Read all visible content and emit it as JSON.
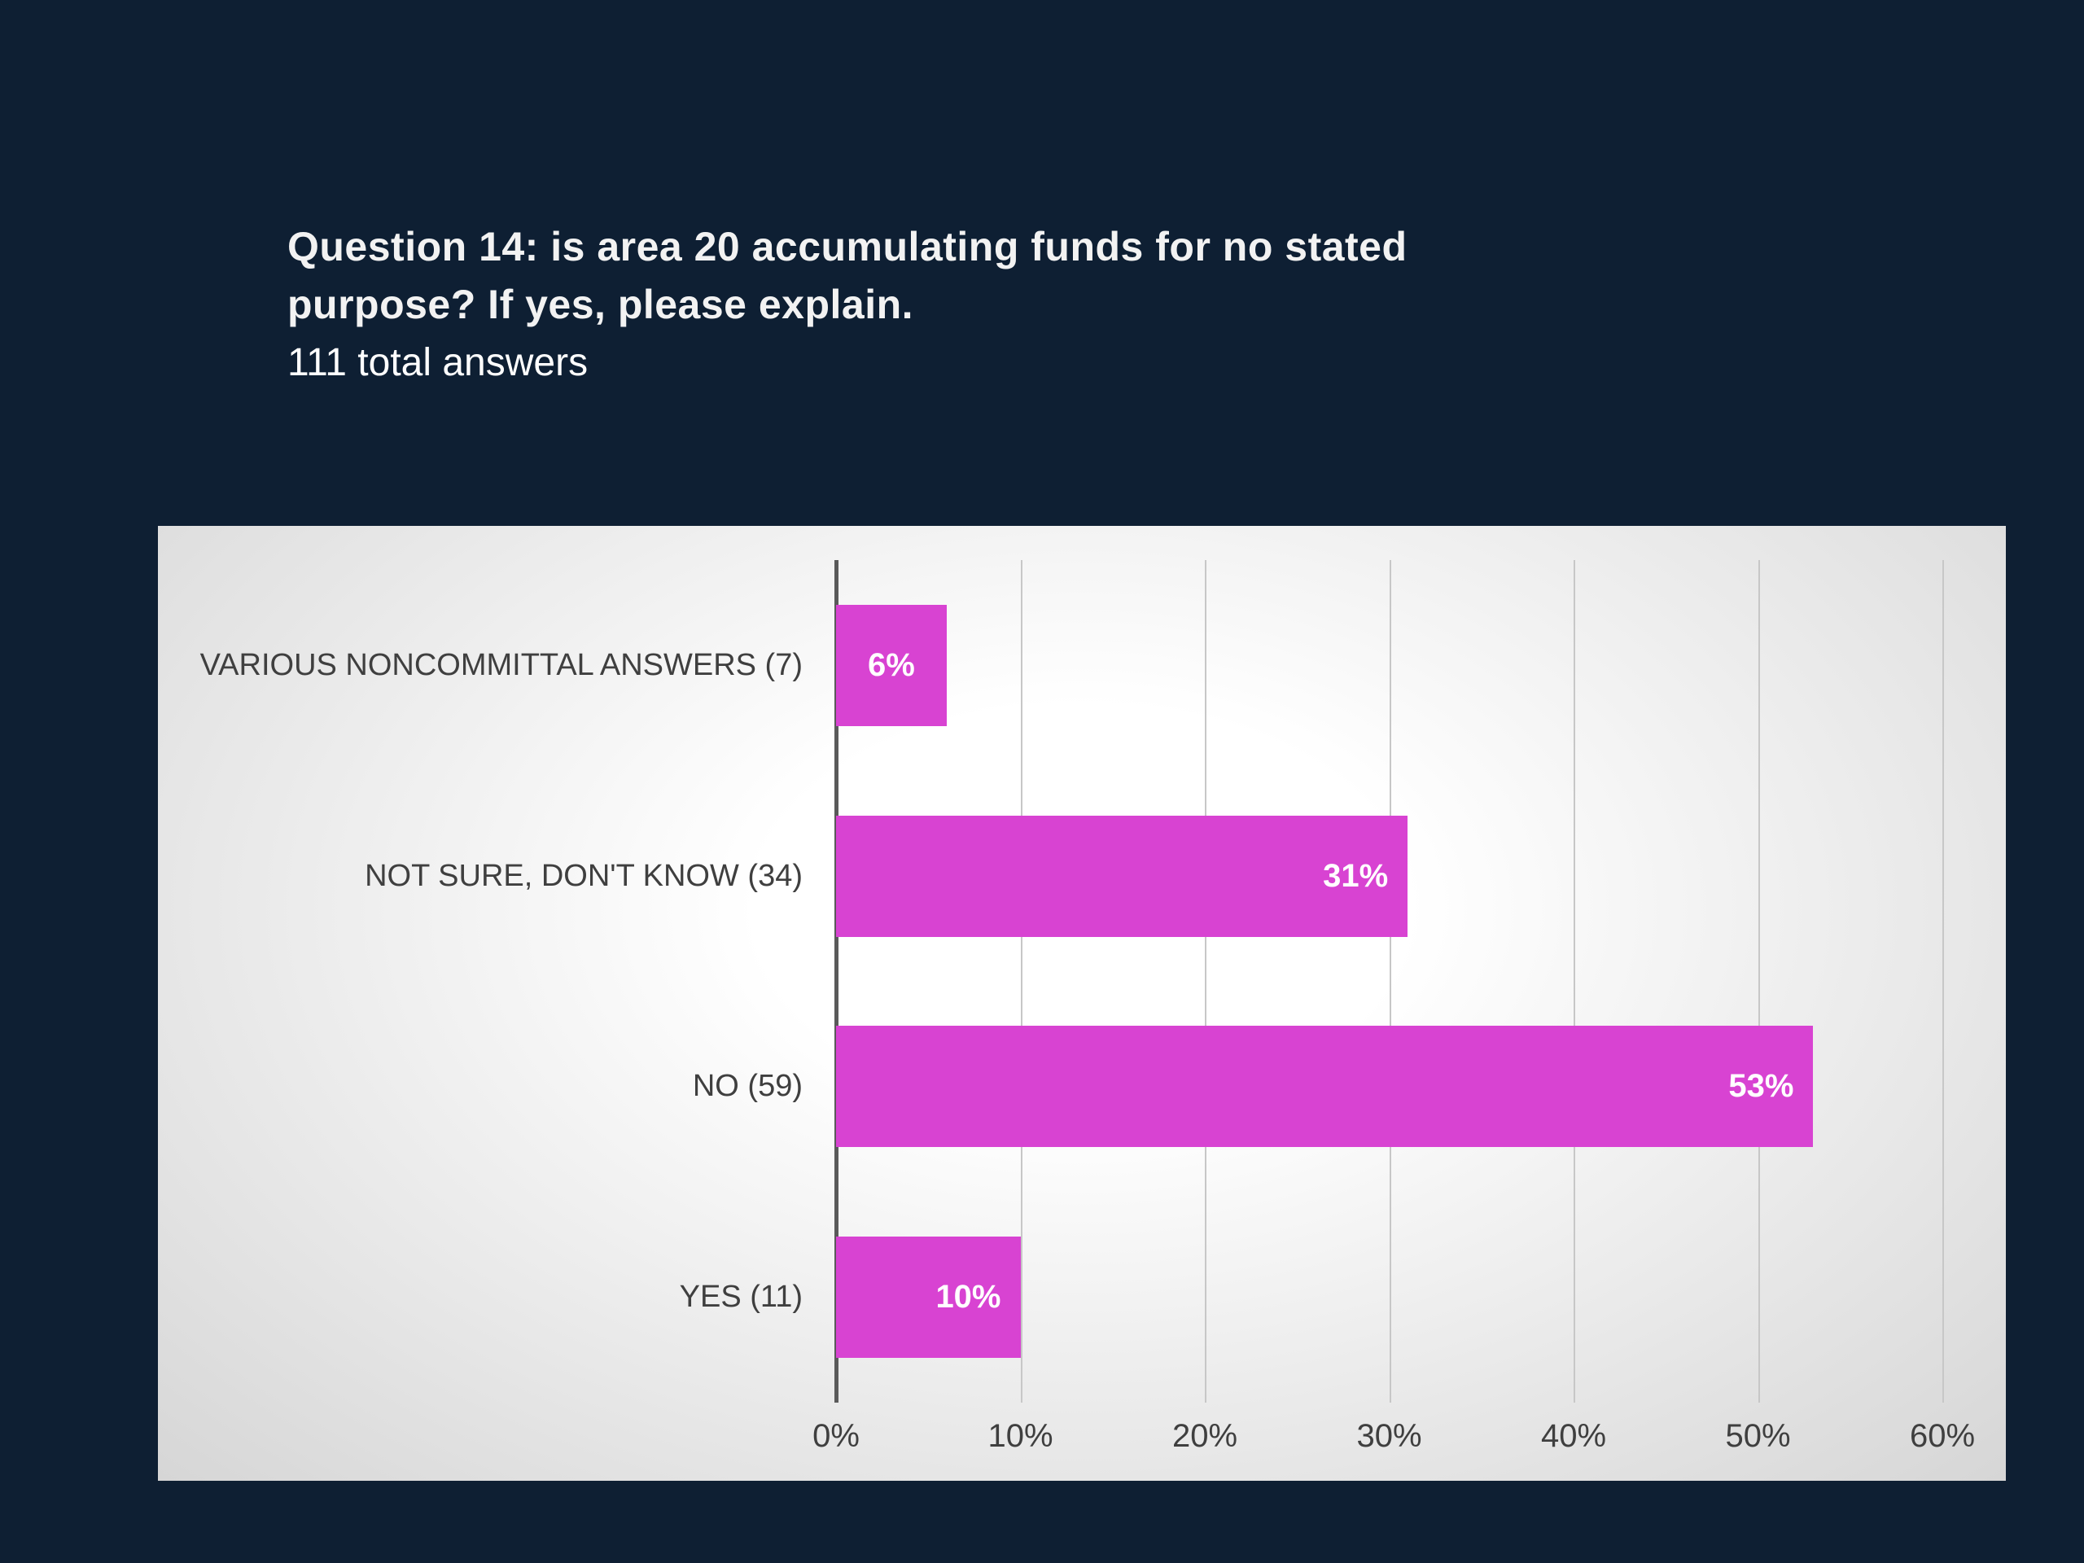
{
  "slide": {
    "title_lines": [
      "Question 14: is area 20 accumulating funds for no stated",
      "purpose? If yes, please explain."
    ],
    "title": "Question 14: is area 20 accumulating funds for no stated purpose? If yes, please explain.",
    "subtitle": "111 total answers"
  },
  "colors": {
    "background": "#0e1f33",
    "panel_center": "#ffffff",
    "panel_edge": "#d6d6d6",
    "bar": "#d843d2",
    "axis_line": "#5a5a5a",
    "gridline": "#c7c7c7",
    "category_text": "#3f3f3f",
    "tick_text": "#3f3f3f",
    "value_label_text": "#ffffff",
    "title_text": "#f2f2f2"
  },
  "chart_data": {
    "type": "bar",
    "orientation": "horizontal",
    "title": "Question 14: is area 20 accumulating funds for no stated purpose? If yes, please explain.",
    "subtitle": "111 total answers",
    "total_answers": 111,
    "categories": [
      "VARIOUS NONCOMMITTAL ANSWERS (7)",
      "NOT SURE, DON'T KNOW (34)",
      "NO (59)",
      "YES (11)"
    ],
    "counts": [
      7,
      34,
      59,
      11
    ],
    "values": [
      6,
      31,
      53,
      10
    ],
    "value_labels": [
      "6%",
      "31%",
      "53%",
      "10%"
    ],
    "x_ticks": [
      "0%",
      "10%",
      "20%",
      "30%",
      "40%",
      "50%",
      "60%"
    ],
    "xlim": [
      0,
      60
    ],
    "xlabel": "",
    "ylabel": "",
    "grid": true,
    "legend": false
  }
}
